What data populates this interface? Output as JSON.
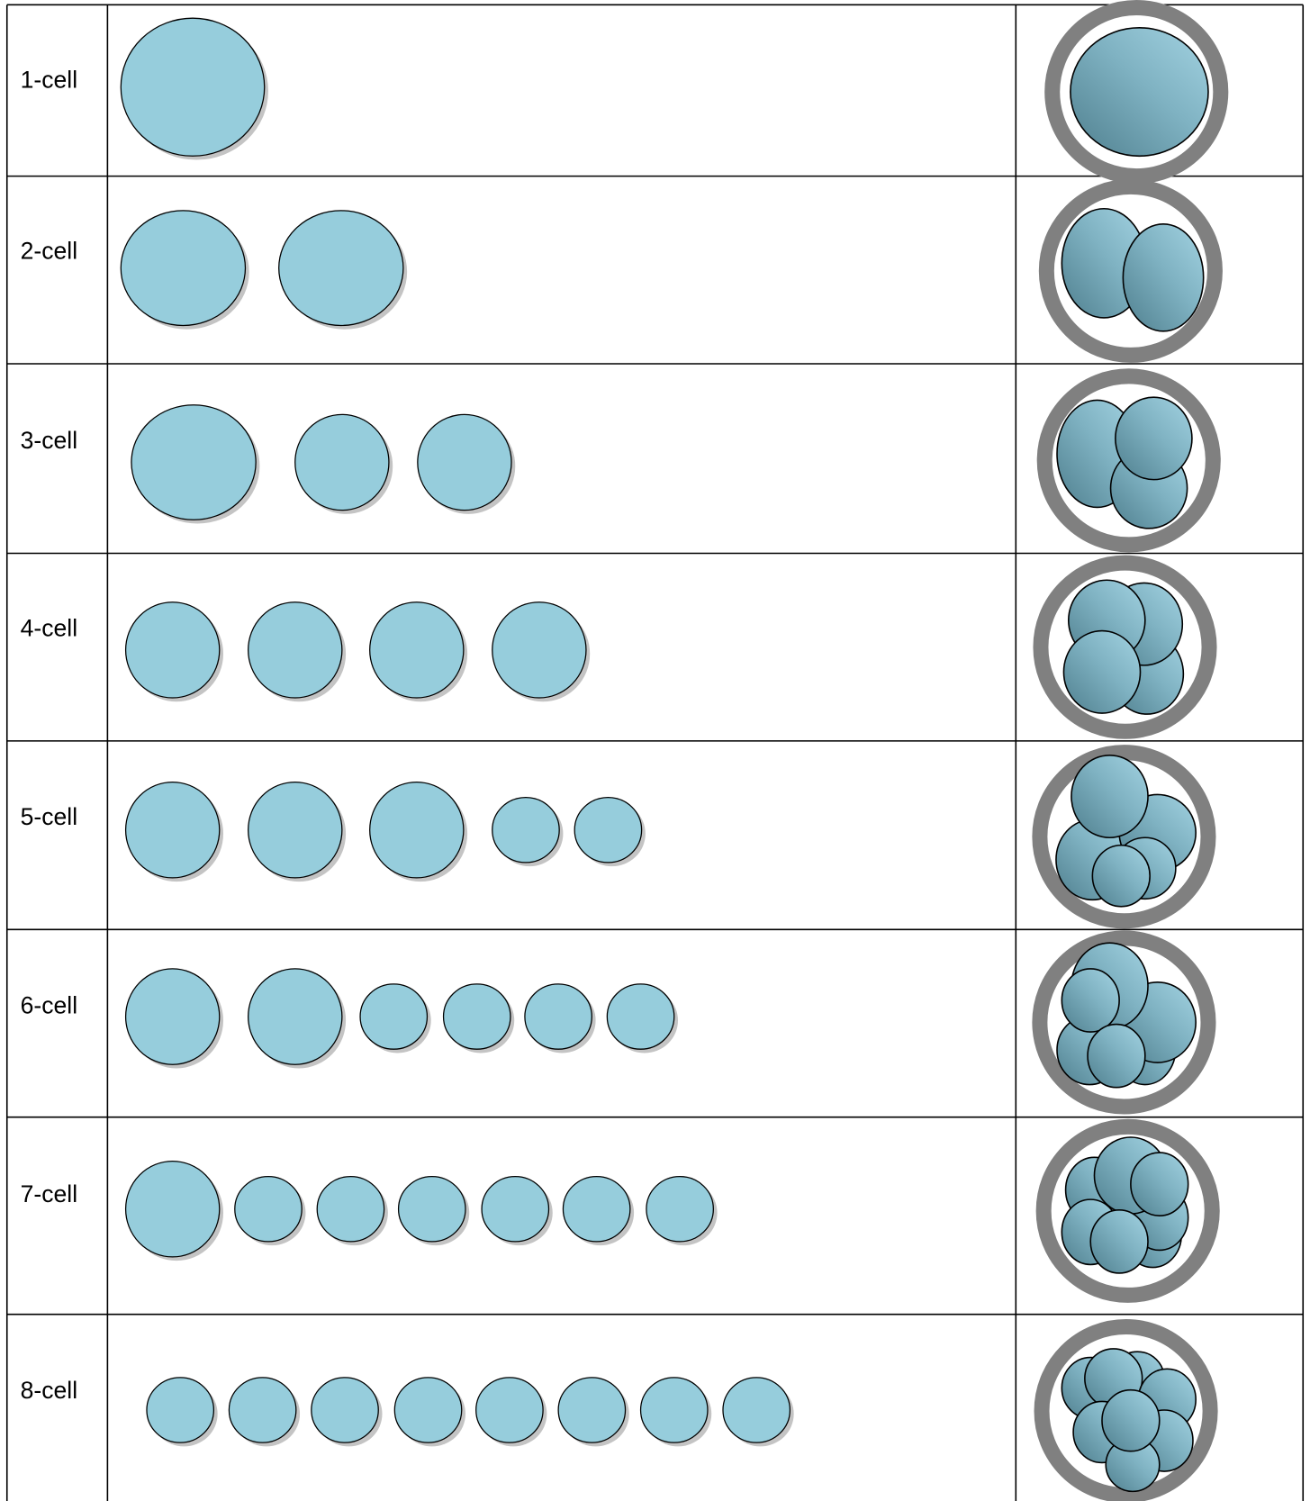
{
  "rows": [
    {
      "label": "1-cell"
    },
    {
      "label": "2-cell"
    },
    {
      "label": "3-cell"
    },
    {
      "label": "4-cell"
    },
    {
      "label": "5-cell"
    },
    {
      "label": "6-cell"
    },
    {
      "label": "7-cell"
    },
    {
      "label": "8-cell"
    }
  ]
}
